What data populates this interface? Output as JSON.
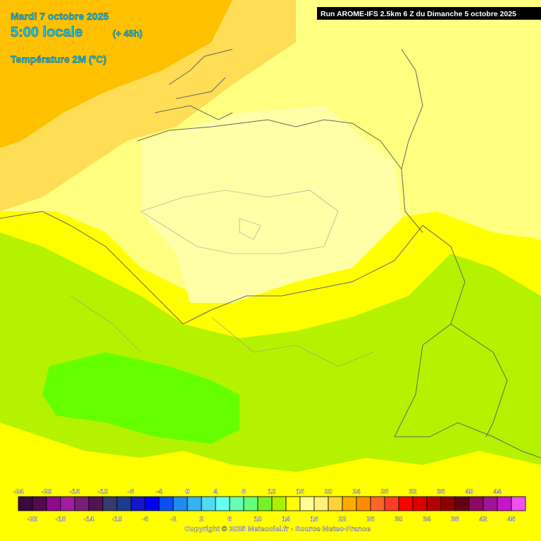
{
  "header": {
    "date": "Mardi 7 octobre 2025",
    "time": "5:00 locale",
    "lead": "(+ 45h)",
    "parameter": "Température 2M (°C)",
    "run": "Run AROME-IFS 2.5km 6 Z du Dimanche 5 octobre 2025"
  },
  "legend": {
    "ticks": [
      -24,
      -22,
      -20,
      -18,
      -16,
      -14,
      -12,
      -10,
      -8,
      -6,
      -4,
      -2,
      0,
      2,
      4,
      6,
      8,
      10,
      12,
      14,
      16,
      18,
      20,
      22,
      24,
      26,
      28,
      30,
      32,
      34,
      36,
      38,
      40,
      42,
      44,
      46
    ],
    "colors": [
      "#3c0a3c",
      "#500a50",
      "#8c0a8c",
      "#a01ea0",
      "#781e78",
      "#501450",
      "#323c6e",
      "#1e3c8c",
      "#1414c8",
      "#0000f0",
      "#0a50f0",
      "#1e8cf0",
      "#32b4f0",
      "#50dcf0",
      "#64fff0",
      "#64ffb4",
      "#64ff78",
      "#78f028",
      "#aaf000",
      "#ffff00",
      "#ffff96",
      "#fff078",
      "#ffd23c",
      "#ffaa00",
      "#ff8c00",
      "#ff6428",
      "#ff3c28",
      "#ff0000",
      "#dc0000",
      "#b40000",
      "#8c0000",
      "#640014",
      "#8c0a64",
      "#a01496",
      "#c814c8",
      "#f050f0"
    ]
  },
  "footer": {
    "copyright": "Copyright © 2025 Meteociel.fr - Source Meteo-France"
  }
}
